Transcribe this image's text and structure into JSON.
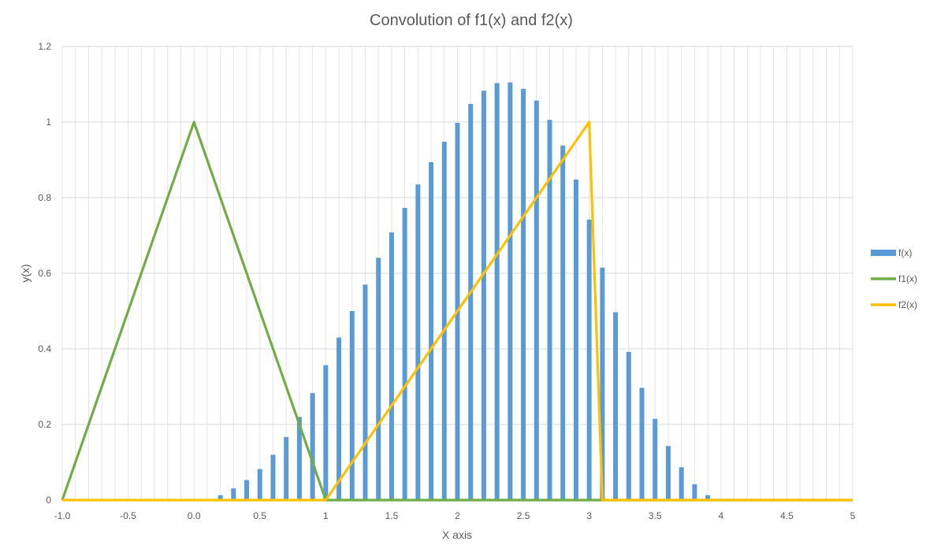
{
  "chart_data": {
    "type": "bar+line",
    "title": "Convolution of f1(x) and f2(x)",
    "xlabel": "X axis",
    "ylabel": "y(x)",
    "xlim": [
      -1,
      5
    ],
    "ylim": [
      0,
      1.2
    ],
    "x_ticks": [
      "-1.0",
      "-0.5",
      "0.0",
      "0.5",
      "1",
      "1.5",
      "2",
      "2.5",
      "3",
      "3.5",
      "4",
      "4.5",
      "5"
    ],
    "y_ticks": [
      "0",
      "0.2",
      "0.4",
      "0.6",
      "0.8",
      "1",
      "1.2"
    ],
    "grid": true,
    "legend_position": "right",
    "series": [
      {
        "name": "f(x)",
        "kind": "bar",
        "color": "#5B9BD5",
        "x": [
          0.1,
          0.2,
          0.3,
          0.4,
          0.5,
          0.6,
          0.7,
          0.8,
          0.9,
          1.0,
          1.1,
          1.2,
          1.3,
          1.4,
          1.5,
          1.6,
          1.7,
          1.8,
          1.9,
          2.0,
          2.1,
          2.2,
          2.3,
          2.4,
          2.5,
          2.6,
          2.7,
          2.8,
          2.9,
          3.0,
          3.1,
          3.2,
          3.3,
          3.4,
          3.5,
          3.6,
          3.7,
          3.8,
          3.9
        ],
        "y": [
          0.003,
          0.013,
          0.031,
          0.053,
          0.082,
          0.12,
          0.167,
          0.22,
          0.283,
          0.357,
          0.43,
          0.5,
          0.57,
          0.641,
          0.708,
          0.773,
          0.835,
          0.894,
          0.948,
          0.998,
          1.048,
          1.083,
          1.103,
          1.105,
          1.088,
          1.057,
          1.006,
          0.938,
          0.848,
          0.742,
          0.615,
          0.497,
          0.392,
          0.297,
          0.215,
          0.143,
          0.087,
          0.042,
          0.013
        ]
      },
      {
        "name": "f1(x)",
        "kind": "line",
        "color": "#70AD47",
        "x": [
          -1,
          0,
          1,
          5
        ],
        "y": [
          0,
          1,
          0,
          0
        ]
      },
      {
        "name": "f2(x)",
        "kind": "line",
        "color": "#FFC000",
        "x": [
          -1,
          1,
          3,
          3.1,
          5
        ],
        "y": [
          0,
          0,
          1,
          0,
          0
        ]
      }
    ]
  }
}
